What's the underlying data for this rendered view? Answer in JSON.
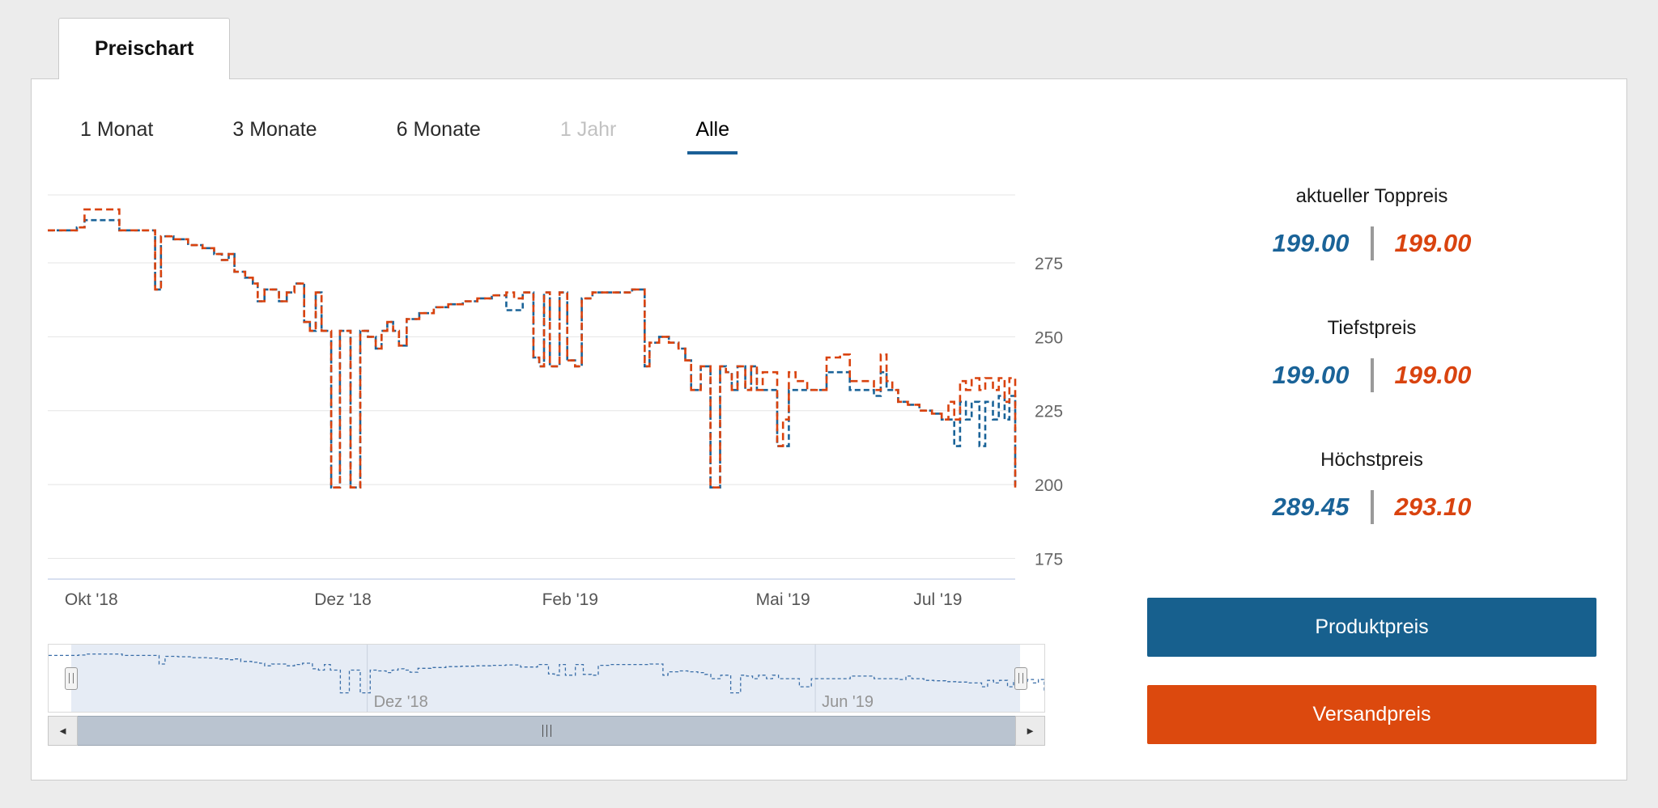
{
  "tab": {
    "label": "Preischart"
  },
  "range_selector": {
    "items": [
      {
        "label": "1 Monat",
        "state": "normal"
      },
      {
        "label": "3 Monate",
        "state": "normal"
      },
      {
        "label": "6 Monate",
        "state": "normal"
      },
      {
        "label": "1 Jahr",
        "state": "disabled"
      },
      {
        "label": "Alle",
        "state": "active"
      }
    ]
  },
  "stats": [
    {
      "label": "aktueller Toppreis",
      "blue_value": "199.00",
      "red_value": "199.00"
    },
    {
      "label": "Tiefstpreis",
      "blue_value": "199.00",
      "red_value": "199.00"
    },
    {
      "label": "Höchstpreis",
      "blue_value": "289.45",
      "red_value": "293.10"
    }
  ],
  "legend_buttons": [
    {
      "label": "Produktpreis",
      "color": "#17608e"
    },
    {
      "label": "Versandpreis",
      "color": "#dc490e"
    }
  ],
  "scrollbar": {
    "left_arrow": "◄",
    "right_arrow": "►"
  },
  "colors": {
    "produktpreis": "#1a6398",
    "versandpreis": "#d9430f",
    "grid": "#e5e5e5",
    "x_axis_line": "#ccd6eb",
    "nav_line": "#3a6ea8",
    "active_underline": "#1a5f96"
  },
  "chart_data": {
    "type": "line",
    "line_style": "dashed-step",
    "title": "",
    "xlabel": "",
    "ylabel": "",
    "xlim": [
      0,
      100
    ],
    "ylim": [
      168,
      298
    ],
    "grid": true,
    "legend_position": "external-buttons",
    "y_ticks": [
      275,
      250,
      225,
      200,
      175
    ],
    "x_ticks": [
      {
        "pos": 4.5,
        "label": "Okt '18"
      },
      {
        "pos": 30.5,
        "label": "Dez '18"
      },
      {
        "pos": 54,
        "label": "Feb '19"
      },
      {
        "pos": 76,
        "label": "Mai '19"
      },
      {
        "pos": 92,
        "label": "Jul '19"
      }
    ],
    "series": [
      {
        "name": "Produktpreis",
        "color": "#1a6398",
        "dash": "7 4",
        "points": [
          [
            0,
            286
          ],
          [
            3,
            287
          ],
          [
            3.8,
            289.45
          ],
          [
            7,
            289.45
          ],
          [
            7.4,
            286
          ],
          [
            10.8,
            286
          ],
          [
            11.1,
            266
          ],
          [
            11.7,
            284
          ],
          [
            13,
            283
          ],
          [
            14.5,
            281
          ],
          [
            16,
            280
          ],
          [
            17.2,
            278
          ],
          [
            18,
            276
          ],
          [
            18.7,
            278
          ],
          [
            19.3,
            272
          ],
          [
            20.4,
            270
          ],
          [
            21.2,
            268
          ],
          [
            21.7,
            262
          ],
          [
            22.4,
            266
          ],
          [
            23.2,
            266
          ],
          [
            23.9,
            262
          ],
          [
            24.7,
            265
          ],
          [
            25.5,
            268
          ],
          [
            26.5,
            255
          ],
          [
            27.1,
            252
          ],
          [
            27.7,
            265
          ],
          [
            28.3,
            252
          ],
          [
            29.3,
            199
          ],
          [
            30.2,
            252
          ],
          [
            31.3,
            199
          ],
          [
            32.3,
            252
          ],
          [
            33.1,
            250
          ],
          [
            33.9,
            246
          ],
          [
            34.5,
            252
          ],
          [
            35.1,
            255
          ],
          [
            35.7,
            252
          ],
          [
            36.3,
            247
          ],
          [
            37.1,
            256
          ],
          [
            38.4,
            258
          ],
          [
            39.9,
            260
          ],
          [
            41.4,
            261
          ],
          [
            42.9,
            262
          ],
          [
            44.4,
            263
          ],
          [
            45.9,
            264
          ],
          [
            47.4,
            259
          ],
          [
            48.2,
            259
          ],
          [
            49.1,
            265
          ],
          [
            50.2,
            243
          ],
          [
            50.8,
            240
          ],
          [
            51.3,
            265
          ],
          [
            51.9,
            240
          ],
          [
            52.9,
            265
          ],
          [
            53.7,
            242
          ],
          [
            54.5,
            240
          ],
          [
            55.2,
            263
          ],
          [
            56.3,
            265
          ],
          [
            58.4,
            265
          ],
          [
            60.4,
            266
          ],
          [
            61.7,
            240
          ],
          [
            62.2,
            248
          ],
          [
            63.2,
            250
          ],
          [
            64.2,
            248
          ],
          [
            65.2,
            246
          ],
          [
            65.9,
            242
          ],
          [
            66.5,
            232
          ],
          [
            67.5,
            240
          ],
          [
            68.5,
            199
          ],
          [
            69.5,
            240
          ],
          [
            70.1,
            238
          ],
          [
            70.7,
            232
          ],
          [
            71.3,
            240
          ],
          [
            72.1,
            232
          ],
          [
            72.7,
            240
          ],
          [
            73.3,
            232
          ],
          [
            73.9,
            232
          ],
          [
            74.9,
            232
          ],
          [
            75.4,
            213
          ],
          [
            76,
            213
          ],
          [
            76.6,
            232
          ],
          [
            77.3,
            232
          ],
          [
            78.5,
            232
          ],
          [
            79.9,
            232
          ],
          [
            80.5,
            238
          ],
          [
            81.9,
            238
          ],
          [
            82.9,
            232
          ],
          [
            84.4,
            232
          ],
          [
            85.4,
            230
          ],
          [
            86.1,
            238
          ],
          [
            86.7,
            232
          ],
          [
            87.3,
            232
          ],
          [
            87.9,
            228
          ],
          [
            88.9,
            227
          ],
          [
            90.1,
            225
          ],
          [
            91.4,
            224
          ],
          [
            92.4,
            222
          ],
          [
            93.1,
            222
          ],
          [
            93.7,
            213
          ],
          [
            94.3,
            228
          ],
          [
            94.9,
            222
          ],
          [
            95.5,
            228
          ],
          [
            96.3,
            213
          ],
          [
            96.9,
            228
          ],
          [
            97.7,
            222
          ],
          [
            98.3,
            230
          ],
          [
            98.9,
            222
          ],
          [
            99.4,
            230
          ],
          [
            100,
            199
          ]
        ]
      },
      {
        "name": "Versandpreis",
        "color": "#d9430f",
        "dash": "9 5",
        "points": [
          [
            0,
            286
          ],
          [
            3,
            287
          ],
          [
            3.8,
            293.1
          ],
          [
            7,
            293.1
          ],
          [
            7.4,
            286
          ],
          [
            10.8,
            286
          ],
          [
            11.1,
            266
          ],
          [
            11.7,
            284
          ],
          [
            13,
            283
          ],
          [
            14.5,
            281
          ],
          [
            16,
            280
          ],
          [
            17.2,
            278
          ],
          [
            18,
            276
          ],
          [
            18.7,
            278
          ],
          [
            19.3,
            272
          ],
          [
            20.4,
            270
          ],
          [
            21.2,
            268
          ],
          [
            21.7,
            262
          ],
          [
            22.4,
            266
          ],
          [
            23.2,
            266
          ],
          [
            23.9,
            262
          ],
          [
            24.7,
            265
          ],
          [
            25.5,
            268
          ],
          [
            26.5,
            255
          ],
          [
            27.1,
            252
          ],
          [
            27.7,
            265
          ],
          [
            28.3,
            252
          ],
          [
            29.3,
            199
          ],
          [
            30.2,
            252
          ],
          [
            31.3,
            199
          ],
          [
            32.3,
            252
          ],
          [
            33.1,
            250
          ],
          [
            33.9,
            246
          ],
          [
            34.5,
            252
          ],
          [
            35.1,
            255
          ],
          [
            35.7,
            252
          ],
          [
            36.3,
            247
          ],
          [
            37.1,
            256
          ],
          [
            38.4,
            258
          ],
          [
            39.9,
            260
          ],
          [
            41.4,
            261
          ],
          [
            42.9,
            262
          ],
          [
            44.4,
            263
          ],
          [
            45.9,
            264
          ],
          [
            47.4,
            265
          ],
          [
            48.2,
            263
          ],
          [
            49.1,
            265
          ],
          [
            50.2,
            243
          ],
          [
            50.8,
            240
          ],
          [
            51.3,
            265
          ],
          [
            51.9,
            240
          ],
          [
            52.9,
            265
          ],
          [
            53.7,
            242
          ],
          [
            54.5,
            240
          ],
          [
            55.2,
            263
          ],
          [
            56.3,
            265
          ],
          [
            58.4,
            265
          ],
          [
            60.4,
            266
          ],
          [
            61.7,
            240
          ],
          [
            62.2,
            248
          ],
          [
            63.2,
            250
          ],
          [
            64.2,
            248
          ],
          [
            65.2,
            246
          ],
          [
            65.9,
            242
          ],
          [
            66.5,
            232
          ],
          [
            67.5,
            240
          ],
          [
            68.5,
            199
          ],
          [
            69.5,
            240
          ],
          [
            70.1,
            238
          ],
          [
            70.7,
            232
          ],
          [
            71.3,
            240
          ],
          [
            72.1,
            232
          ],
          [
            72.7,
            240
          ],
          [
            73.3,
            232
          ],
          [
            73.9,
            238
          ],
          [
            74.9,
            238
          ],
          [
            75.4,
            213
          ],
          [
            76,
            222
          ],
          [
            76.6,
            238
          ],
          [
            77.3,
            235
          ],
          [
            78.5,
            232
          ],
          [
            79.9,
            232
          ],
          [
            80.5,
            243
          ],
          [
            81.9,
            244
          ],
          [
            82.9,
            235
          ],
          [
            84.4,
            235
          ],
          [
            85.4,
            232
          ],
          [
            86.1,
            244
          ],
          [
            86.7,
            235
          ],
          [
            87.3,
            232
          ],
          [
            87.9,
            228
          ],
          [
            88.9,
            227
          ],
          [
            90.1,
            225
          ],
          [
            91.4,
            224
          ],
          [
            92.4,
            222
          ],
          [
            93.1,
            228
          ],
          [
            93.7,
            222
          ],
          [
            94.3,
            235
          ],
          [
            94.9,
            232
          ],
          [
            95.5,
            236
          ],
          [
            96.3,
            232
          ],
          [
            96.9,
            236
          ],
          [
            97.7,
            232
          ],
          [
            98.3,
            236
          ],
          [
            98.9,
            228
          ],
          [
            99.4,
            236
          ],
          [
            100,
            199
          ]
        ]
      }
    ],
    "navigator": {
      "labels": [
        {
          "pos": 32,
          "label": "Dez '18"
        },
        {
          "pos": 77,
          "label": "Jun '19"
        }
      ]
    }
  }
}
